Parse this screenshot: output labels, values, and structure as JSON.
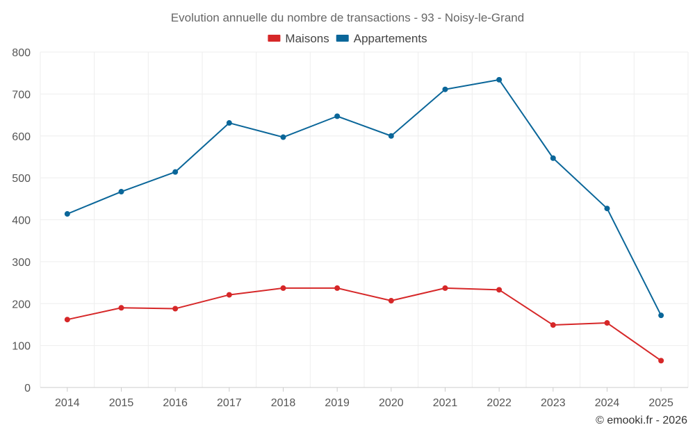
{
  "chart_data": {
    "type": "line",
    "title": "Evolution annuelle du nombre de transactions - 93 - Noisy-le-Grand",
    "categories": [
      "2014",
      "2015",
      "2016",
      "2017",
      "2018",
      "2019",
      "2020",
      "2021",
      "2022",
      "2023",
      "2024",
      "2025"
    ],
    "series": [
      {
        "name": "Maisons",
        "color": "#d62728",
        "values": [
          162,
          190,
          188,
          221,
          237,
          237,
          207,
          237,
          233,
          149,
          154,
          64
        ]
      },
      {
        "name": "Appartements",
        "color": "#0a6699",
        "values": [
          414,
          467,
          514,
          631,
          597,
          647,
          600,
          711,
          734,
          547,
          427,
          172
        ]
      }
    ],
    "ylim": [
      0,
      800
    ],
    "yticks": [
      0,
      100,
      200,
      300,
      400,
      500,
      600,
      700,
      800
    ],
    "grid": true,
    "legend_position": "top-center",
    "xlabel": "",
    "ylabel": ""
  },
  "credit": "© emooki.fr - 2026"
}
